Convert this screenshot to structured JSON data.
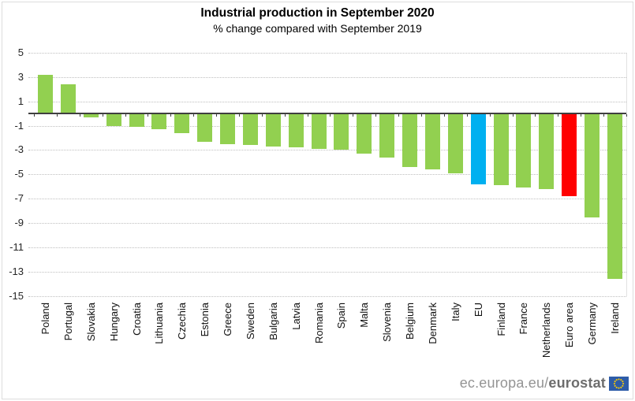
{
  "title": "Industrial production in September 2020",
  "subtitle": "% change compared with September 2019",
  "footer": {
    "url_prefix": "ec.europa.eu/",
    "url_bold": "eurostat",
    "logo_icon": "eu-flag-icon",
    "logo_bg_color": "#2e5ca8",
    "logo_star_color": "#ffcc00"
  },
  "chart_data": {
    "type": "bar",
    "title": "Industrial production in September 2020",
    "subtitle": "% change compared with September 2019",
    "xlabel": "",
    "ylabel": "",
    "categories": [
      "Poland",
      "Portugal",
      "Slovakia",
      "Hungary",
      "Croatia",
      "Lithuania",
      "Czechia",
      "Estonia",
      "Greece",
      "Sweden",
      "Bulgaria",
      "Latvia",
      "Romania",
      "Spain",
      "Malta",
      "Slovenia",
      "Belgium",
      "Denmark",
      "Italy",
      "EU",
      "Finland",
      "France",
      "Netherlands",
      "Euro area",
      "Germany",
      "Ireland"
    ],
    "values": [
      3.2,
      2.4,
      -0.3,
      -1.0,
      -1.1,
      -1.3,
      -1.6,
      -2.3,
      -2.5,
      -2.6,
      -2.7,
      -2.8,
      -2.9,
      -3.0,
      -3.3,
      -3.6,
      -4.4,
      -4.6,
      -4.9,
      -5.8,
      -5.9,
      -6.1,
      -6.2,
      -6.8,
      -8.5,
      -13.6
    ],
    "yticks": [
      5,
      3,
      1,
      -1,
      -3,
      -5,
      -7,
      -9,
      -11,
      -13,
      -15
    ],
    "ylim": [
      -15,
      5
    ],
    "grid": "horizontal-dotted",
    "legend": "none",
    "bar_color_default": "#92d050",
    "highlight_colors": {
      "EU": "#00b0f0",
      "Euro area": "#ff0000"
    },
    "unit": "%"
  }
}
